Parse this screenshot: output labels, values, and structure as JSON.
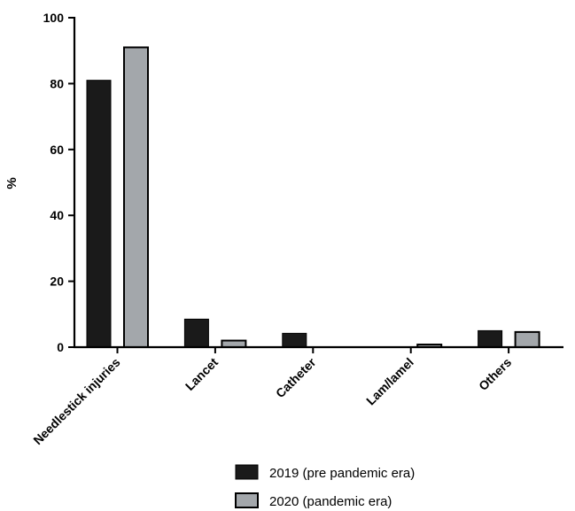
{
  "chart_data": {
    "type": "bar",
    "title": "",
    "xlabel": "",
    "ylabel": "%",
    "ylim": [
      0,
      100
    ],
    "yticks": [
      0,
      20,
      40,
      60,
      80,
      100
    ],
    "categories": [
      "Needlestick injuries",
      "Lancet",
      "Catheter",
      "Lam/lamel",
      "Others"
    ],
    "series": [
      {
        "name": "2019 (pre pandemic era)",
        "values": [
          81,
          8.5,
          4.2,
          0,
          5
        ],
        "color": "#1a1a1a"
      },
      {
        "name": "2020 (pandemic era)",
        "values": [
          91,
          2,
          0,
          0.8,
          4.6
        ],
        "color": "#a3a7ab"
      }
    ],
    "grid": false,
    "legend_position": "bottom"
  }
}
